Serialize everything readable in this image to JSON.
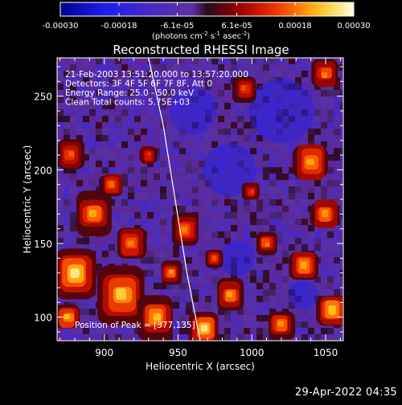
{
  "chart_data": {
    "type": "heatmap",
    "title": "Reconstructed RHESSI Image",
    "xlabel": "Heliocentric X (arcsec)",
    "ylabel": "Heliocentric Y (arcsec)",
    "xlim": [
      868,
      1062
    ],
    "ylim": [
      84,
      276
    ],
    "x_ticks": [
      900,
      950,
      1000,
      1050
    ],
    "y_ticks": [
      100,
      150,
      200,
      250
    ],
    "colorbar": {
      "min": -0.0003,
      "max": 0.0003,
      "tick_values": [
        -0.0003,
        -0.00018,
        -6.1e-05,
        6.1e-05,
        0.00018,
        0.0003
      ],
      "tick_labels": [
        "-0.00030",
        "-0.00018",
        "-6.1e-05",
        "6.1e-05",
        "0.00018",
        "0.00030"
      ],
      "units_prefix": "(photons cm",
      "units_middle1": " s",
      "units_middle2": " asec",
      "units_suffix": ")",
      "units_exp1": "-2",
      "units_exp2": "-1",
      "units_exp3": "-2"
    },
    "info_lines": [
      "21-Feb-2003 13:51:20.000 to 13:57:20.000",
      "Detectors: 3F 4F 5F 6F 7F 8F, Att 0",
      "Energy Range: 25.0 - 50.0 keV",
      "Clean     Total counts: 5.75E+03"
    ],
    "peak_label": "Position of Peak = [377,135]",
    "limb_curve": [
      [
        930,
        276
      ],
      [
        940,
        230
      ],
      [
        948,
        180
      ],
      [
        956,
        130
      ],
      [
        965,
        84
      ]
    ],
    "hot_regions": [
      {
        "x": 880,
        "y": 130,
        "r": 14,
        "v": 1.0
      },
      {
        "x": 893,
        "y": 170,
        "r": 12,
        "v": 0.8
      },
      {
        "x": 877,
        "y": 210,
        "r": 9,
        "v": 0.6
      },
      {
        "x": 912,
        "y": 115,
        "r": 16,
        "v": 0.9
      },
      {
        "x": 935,
        "y": 100,
        "r": 12,
        "v": 0.85
      },
      {
        "x": 968,
        "y": 92,
        "r": 10,
        "v": 1.0
      },
      {
        "x": 918,
        "y": 150,
        "r": 10,
        "v": 0.7
      },
      {
        "x": 905,
        "y": 190,
        "r": 8,
        "v": 0.65
      },
      {
        "x": 955,
        "y": 160,
        "r": 9,
        "v": 0.7
      },
      {
        "x": 945,
        "y": 130,
        "r": 7,
        "v": 0.75
      },
      {
        "x": 985,
        "y": 115,
        "r": 9,
        "v": 0.8
      },
      {
        "x": 1040,
        "y": 205,
        "r": 12,
        "v": 0.8
      },
      {
        "x": 1050,
        "y": 170,
        "r": 10,
        "v": 0.75
      },
      {
        "x": 1035,
        "y": 135,
        "r": 10,
        "v": 0.8
      },
      {
        "x": 1055,
        "y": 105,
        "r": 12,
        "v": 0.85
      },
      {
        "x": 1020,
        "y": 95,
        "r": 9,
        "v": 0.75
      },
      {
        "x": 1010,
        "y": 150,
        "r": 7,
        "v": 0.7
      },
      {
        "x": 995,
        "y": 255,
        "r": 8,
        "v": 0.55
      },
      {
        "x": 1050,
        "y": 265,
        "r": 9,
        "v": 0.7
      },
      {
        "x": 1000,
        "y": 185,
        "r": 6,
        "v": 0.5
      },
      {
        "x": 875,
        "y": 100,
        "r": 9,
        "v": 0.85
      },
      {
        "x": 930,
        "y": 210,
        "r": 6,
        "v": 0.5
      },
      {
        "x": 975,
        "y": 140,
        "r": 6,
        "v": 0.6
      }
    ],
    "cold_regions": [
      {
        "x": 1020,
        "y": 240,
        "r": 22
      },
      {
        "x": 985,
        "y": 200,
        "r": 18
      },
      {
        "x": 960,
        "y": 240,
        "r": 16
      },
      {
        "x": 1035,
        "y": 115,
        "r": 10
      },
      {
        "x": 990,
        "y": 140,
        "r": 12
      }
    ]
  },
  "colors": {
    "background": "#000000",
    "text": "#ffffff",
    "base_map": "#5a2a9c"
  },
  "footer_date": "29-Apr-2022 04:35"
}
